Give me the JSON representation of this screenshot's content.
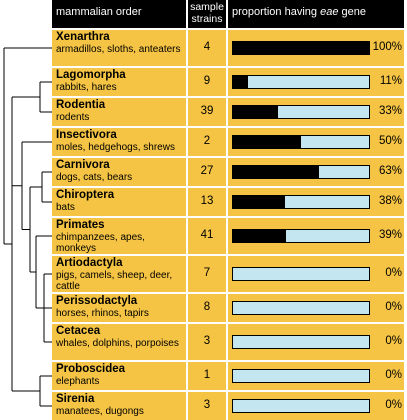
{
  "chart_data": {
    "type": "bar",
    "headers": {
      "order": "mammalian order",
      "strains": "sample strains",
      "proportion": [
        "proportion having",
        "eae",
        "gene"
      ]
    },
    "categories": [
      "Xenarthra",
      "Lagomorpha",
      "Rodentia",
      "Insectivora",
      "Carnivora",
      "Chiroptera",
      "Primates",
      "Artiodactyla",
      "Perissodactyla",
      "Cetacea",
      "Proboscidea",
      "Sirenia"
    ],
    "descriptions": [
      "armadillos, sloths, anteaters",
      "rabbits, hares",
      "rodents",
      "moles, hedgehogs, shrews",
      "dogs, cats, bears",
      "bats",
      "chimpanzees, apes, monkeys",
      "pigs, camels, sheep, deer, cattle",
      "horses, rhinos, tapirs",
      "whales, dolphins, porpoises",
      "elephants",
      "manatees, dugongs"
    ],
    "strains": [
      4,
      9,
      39,
      2,
      27,
      13,
      41,
      7,
      8,
      3,
      1,
      3
    ],
    "values": [
      100,
      11,
      33,
      50,
      63,
      38,
      39,
      0,
      0,
      0,
      0,
      0
    ],
    "value_labels": [
      "100%",
      "11%",
      "33%",
      "50%",
      "63%",
      "38%",
      "39%",
      "0%",
      "0%",
      "0%",
      "0%",
      "0%"
    ],
    "xlim": [
      0,
      100
    ],
    "color": "#000000"
  }
}
